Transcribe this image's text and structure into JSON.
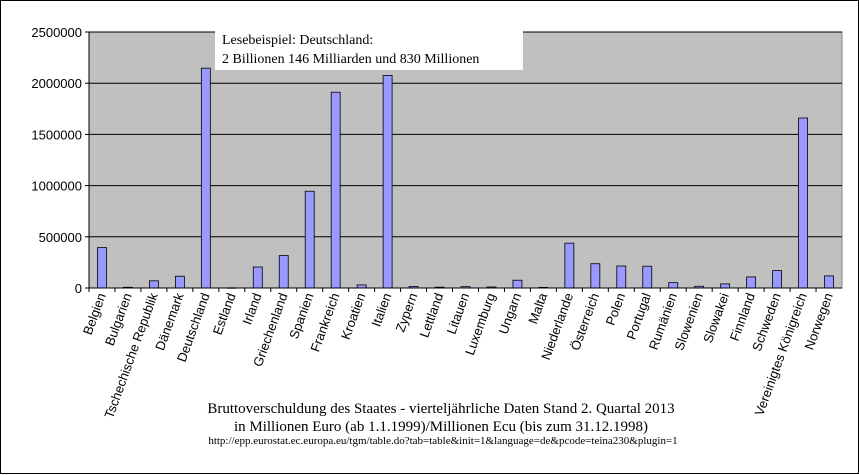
{
  "chart_data": {
    "type": "bar",
    "categories": [
      "Belgien",
      "Bulgarien",
      "Tschechische Republik",
      "Dänemark",
      "Deutschland",
      "Estland",
      "Irland",
      "Griechenland",
      "Spanien",
      "Frankreich",
      "Kroatien",
      "Italien",
      "Zypern",
      "Lettland",
      "Litauen",
      "Luxemburg",
      "Ungarn",
      "Malta",
      "Niederlande",
      "Österreich",
      "Polen",
      "Portugal",
      "Rumänien",
      "Slowenien",
      "Slowakei",
      "Finnland",
      "Schweden",
      "Vereinigtes Königreich",
      "Norwegen"
    ],
    "values": [
      395000,
      7000,
      70000,
      115000,
      2146830,
      2000,
      205000,
      317000,
      945000,
      1912000,
      30000,
      2076000,
      15000,
      8000,
      13000,
      10000,
      76000,
      6000,
      438000,
      237000,
      215000,
      213000,
      52000,
      17000,
      40000,
      108000,
      170000,
      1660000,
      118000
    ],
    "ylim": [
      0,
      2500000
    ],
    "yticks": [
      "0",
      "500000",
      "1000000",
      "1500000",
      "2000000",
      "2500000"
    ],
    "ytick_values": [
      0,
      500000,
      1000000,
      1500000,
      2000000,
      2500000
    ],
    "grid": true,
    "bar_color": "#9999ff",
    "plot_bg": "#c0c0c0",
    "annotation": {
      "line1": "Lesebeispiel: Deutschland:",
      "line2": "2 Billionen 146 Milliarden und 830 Millionen"
    },
    "caption": {
      "line1": "Bruttoverschuldung des Staates - vierteljährliche Daten Stand 2. Quartal 2013",
      "line2": "in Millionen Euro (ab 1.1.1999)/Millionen Ecu (bis zum 31.12.1998)",
      "source": "http://epp.eurostat.ec.europa.eu/tgm/table.do?tab=table&init=1&language=de&pcode=teina230&plugin=1"
    }
  }
}
